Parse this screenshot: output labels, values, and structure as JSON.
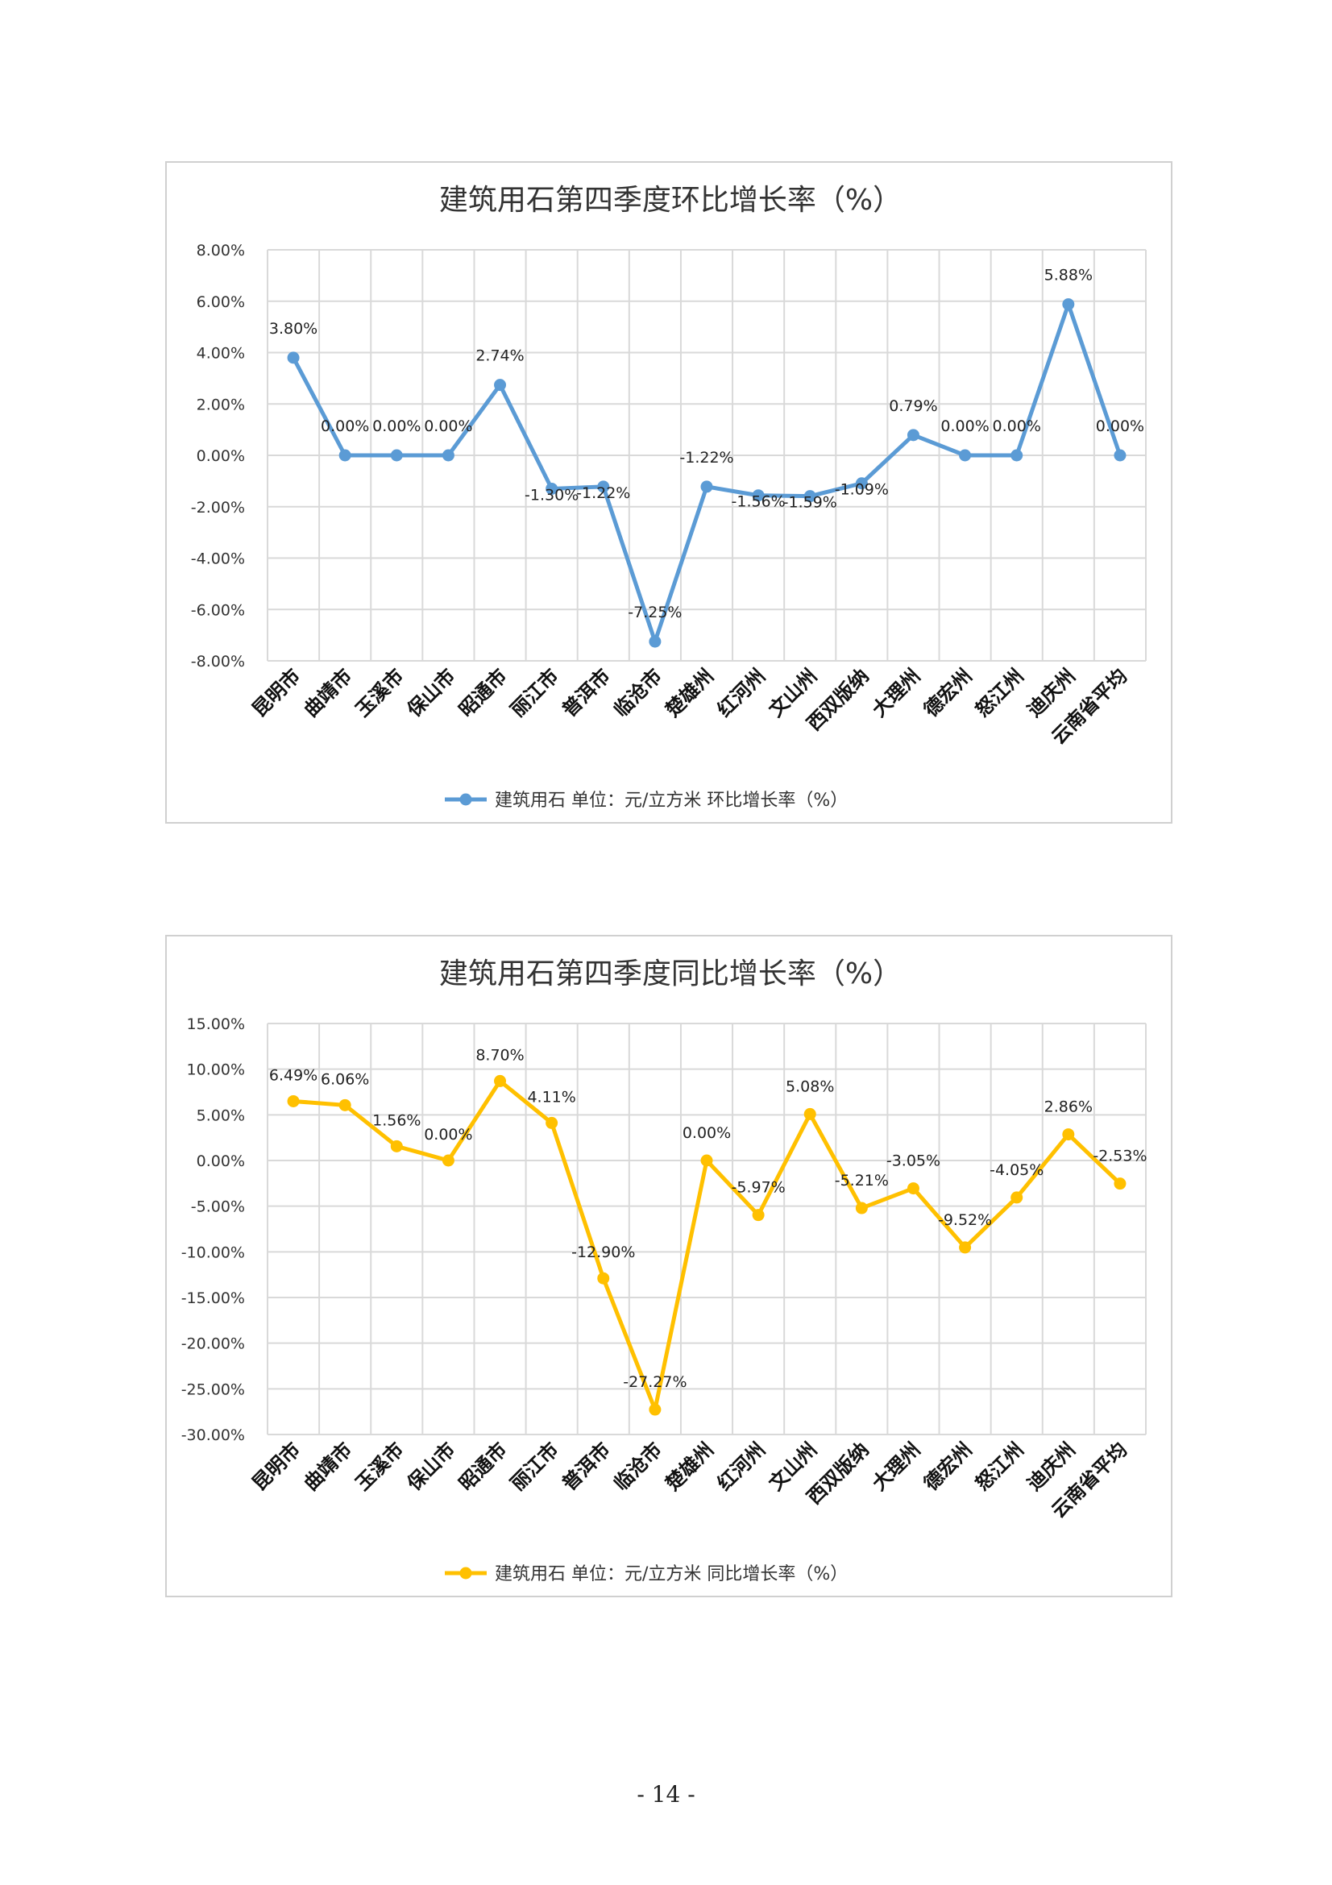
{
  "page_number": "- 14 -",
  "chart_data": [
    {
      "type": "line",
      "title": "建筑用石第四季度环比增长率（%）",
      "categories": [
        "昆明市",
        "曲靖市",
        "玉溪市",
        "保山市",
        "昭通市",
        "丽江市",
        "普洱市",
        "临沧市",
        "楚雄州",
        "红河州",
        "文山州",
        "西双版纳",
        "大理州",
        "德宏州",
        "怒江州",
        "迪庆州",
        "云南省平均"
      ],
      "series": [
        {
          "name": "建筑用石 单位：元/立方米 环比增长率（%）",
          "values": [
            3.8,
            0.0,
            0.0,
            0.0,
            2.74,
            -1.3,
            -1.22,
            -7.25,
            -1.22,
            -1.56,
            -1.59,
            -1.09,
            0.79,
            0.0,
            0.0,
            5.88,
            0.0
          ],
          "labels": [
            "3.80%",
            "0.00%",
            "0.00%",
            "0.00%",
            "2.74%",
            "-1.30%",
            "-1.22%",
            "-7.25%",
            "-1.22%",
            "-1.56%",
            "-1.59%",
            "-1.09%",
            "0.79%",
            "0.00%",
            "0.00%",
            "5.88%",
            "0.00%"
          ]
        }
      ],
      "ylim": [
        -8,
        8
      ],
      "yticks": [
        8,
        6,
        4,
        2,
        0,
        -2,
        -4,
        -6,
        -8
      ],
      "ytick_labels": [
        "8.00%",
        "6.00%",
        "4.00%",
        "2.00%",
        "0.00%",
        "-2.00%",
        "-4.00%",
        "-6.00%",
        "-8.00%"
      ],
      "grid": true,
      "legend_position": "bottom",
      "color": "#5B9BD5"
    },
    {
      "type": "line",
      "title": "建筑用石第四季度同比增长率（%）",
      "categories": [
        "昆明市",
        "曲靖市",
        "玉溪市",
        "保山市",
        "昭通市",
        "丽江市",
        "普洱市",
        "临沧市",
        "楚雄州",
        "红河州",
        "文山州",
        "西双版纳",
        "大理州",
        "德宏州",
        "怒江州",
        "迪庆州",
        "云南省平均"
      ],
      "series": [
        {
          "name": "建筑用石 单位：元/立方米 同比增长率（%）",
          "values": [
            6.49,
            6.06,
            1.56,
            0.0,
            8.7,
            4.11,
            -12.9,
            -27.27,
            0.0,
            -5.97,
            5.08,
            -5.21,
            -3.05,
            -9.52,
            -4.05,
            2.86,
            -2.53
          ],
          "labels": [
            "6.49%",
            "6.06%",
            "1.56%",
            "0.00%",
            "8.70%",
            "4.11%",
            "-12.90%",
            "-27.27%",
            "0.00%",
            "-5.97%",
            "5.08%",
            "-5.21%",
            "-3.05%",
            "-9.52%",
            "-4.05%",
            "2.86%",
            "-2.53%"
          ]
        }
      ],
      "ylim": [
        -30,
        15
      ],
      "yticks": [
        15,
        10,
        5,
        0,
        -5,
        -10,
        -15,
        -20,
        -25,
        -30
      ],
      "ytick_labels": [
        "15.00%",
        "10.00%",
        "5.00%",
        "0.00%",
        "-5.00%",
        "-10.00%",
        "-15.00%",
        "-20.00%",
        "-25.00%",
        "-30.00%"
      ],
      "grid": true,
      "legend_position": "bottom",
      "color": "#FFC000"
    }
  ]
}
